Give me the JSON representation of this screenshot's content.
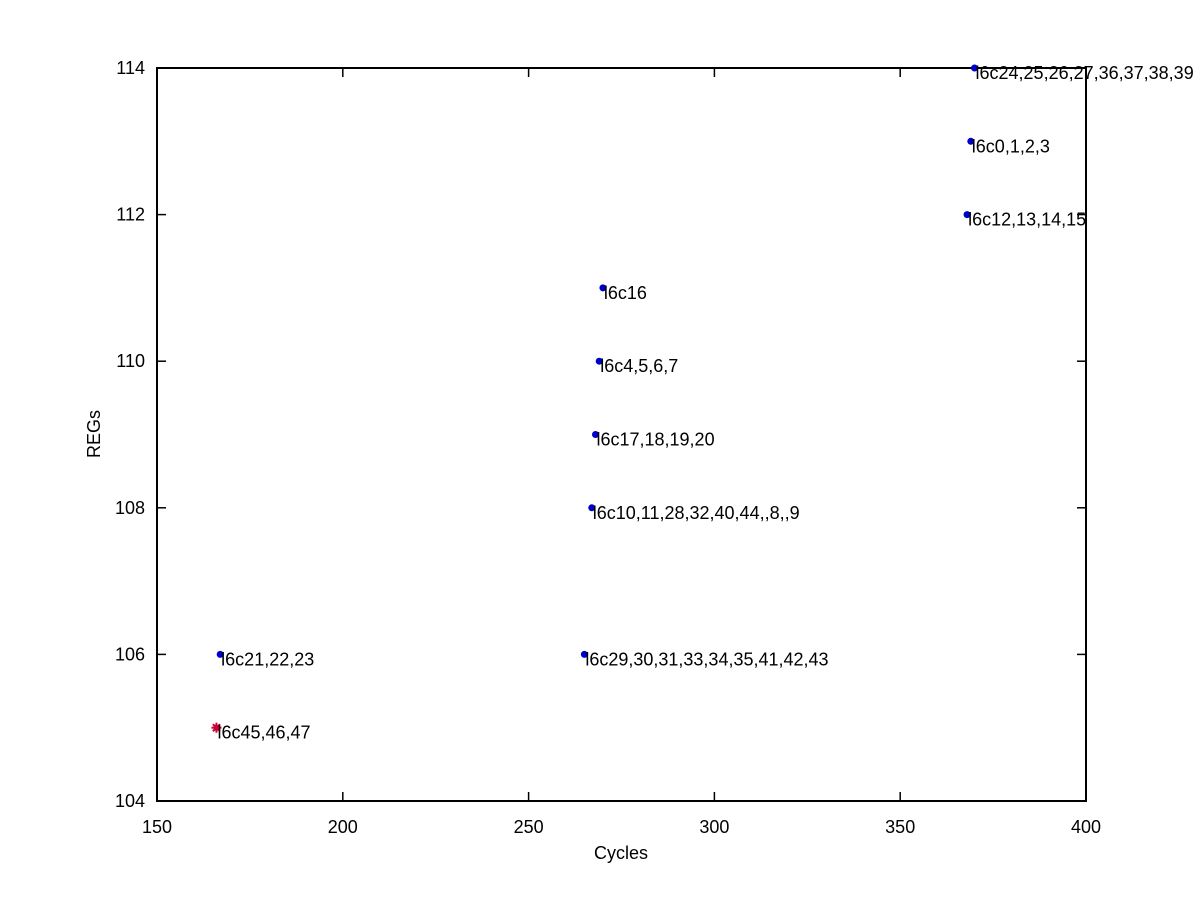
{
  "chart_data": {
    "type": "scatter",
    "xlabel": "Cycles",
    "ylabel": "REGs",
    "xlim": [
      150,
      400
    ],
    "ylim": [
      104,
      114
    ],
    "xticks": [
      "150",
      "200",
      "250",
      "300",
      "350",
      "400"
    ],
    "yticks": [
      "104",
      "106",
      "108",
      "110",
      "112",
      "114"
    ],
    "grid": false,
    "points": [
      {
        "x": 370,
        "y": 114,
        "label": "l6c24,25,26,27,36,37,38,39",
        "color": "#0000cc",
        "marker": "dot"
      },
      {
        "x": 369,
        "y": 113,
        "label": "l6c0,1,2,3",
        "color": "#0000cc",
        "marker": "dot"
      },
      {
        "x": 368,
        "y": 112,
        "label": "l6c12,13,14,15",
        "color": "#0000cc",
        "marker": "dot"
      },
      {
        "x": 270,
        "y": 111,
        "label": "l6c16",
        "color": "#0000cc",
        "marker": "dot"
      },
      {
        "x": 269,
        "y": 110,
        "label": "l6c4,5,6,7",
        "color": "#0000cc",
        "marker": "dot"
      },
      {
        "x": 268,
        "y": 109,
        "label": "l6c17,18,19,20",
        "color": "#0000cc",
        "marker": "dot"
      },
      {
        "x": 267,
        "y": 108,
        "label": "l6c10,11,28,32,40,44,,8,,9",
        "color": "#0000cc",
        "marker": "dot"
      },
      {
        "x": 167,
        "y": 106,
        "label": "l6c21,22,23",
        "color": "#0000cc",
        "marker": "dot"
      },
      {
        "x": 265,
        "y": 106,
        "label": "l6c29,30,31,33,34,35,41,42,43",
        "color": "#0000cc",
        "marker": "dot"
      },
      {
        "x": 166,
        "y": 105,
        "label": "l6c45,46,47",
        "color": "#cc0033",
        "marker": "star"
      }
    ]
  }
}
